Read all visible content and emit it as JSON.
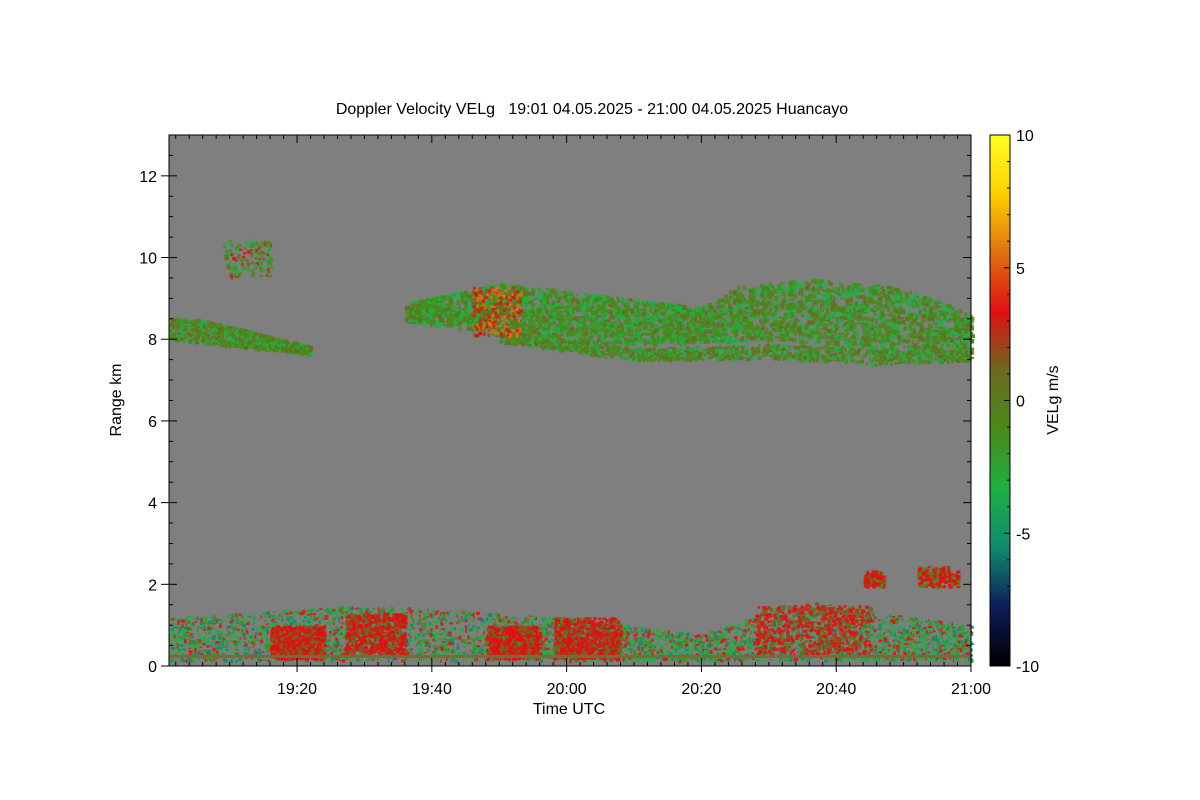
{
  "chart_data": {
    "type": "heatmap",
    "title": "Doppler Velocity VELg   19:01 04.05.2025 - 21:00 04.05.2025 Huancayo",
    "xlabel": "Time UTC",
    "ylabel": "Range km",
    "colorbar_label": "VELg m/s",
    "xlim": [
      "19:01",
      "21:00"
    ],
    "ylim": [
      0,
      13
    ],
    "clim": [
      -10,
      10
    ],
    "x_ticks": [
      "19:20",
      "19:40",
      "20:00",
      "20:20",
      "20:40",
      "21:00"
    ],
    "y_ticks": [
      "0",
      "2",
      "4",
      "6",
      "8",
      "10",
      "12"
    ],
    "colorbar_ticks": [
      "10",
      "5",
      "0",
      "-5",
      "-10"
    ],
    "background_color": "#7f7f7f",
    "colormap": [
      "#000000",
      "#0f1a5a",
      "#0f8a6e",
      "#1db043",
      "#4a8a1a",
      "#6b6a20",
      "#e01010",
      "#e07010",
      "#ffd000",
      "#ffff20"
    ],
    "features": [
      {
        "name": "upper cloud layer",
        "range_km": [
          7.5,
          10.0
        ],
        "time": [
          "19:01",
          "21:00"
        ],
        "velocity": "about 0 to -2 m/s (green-olive), local +2 m/s near 19:50"
      },
      {
        "name": "isolated cloud",
        "range_km": [
          9.5,
          10.5
        ],
        "time": [
          "19:09",
          "19:16"
        ],
        "velocity": "about 0 m/s"
      },
      {
        "name": "boundary layer echoes",
        "range_km": [
          0.2,
          1.6
        ],
        "time": [
          "19:01",
          "21:00"
        ],
        "velocity": "mixed -3 to +2 m/s"
      },
      {
        "name": "low cloud patches",
        "range_km": [
          1.9,
          2.4
        ],
        "time": [
          "20:44",
          "20:58"
        ],
        "velocity": "about +2 m/s (red)"
      }
    ]
  }
}
